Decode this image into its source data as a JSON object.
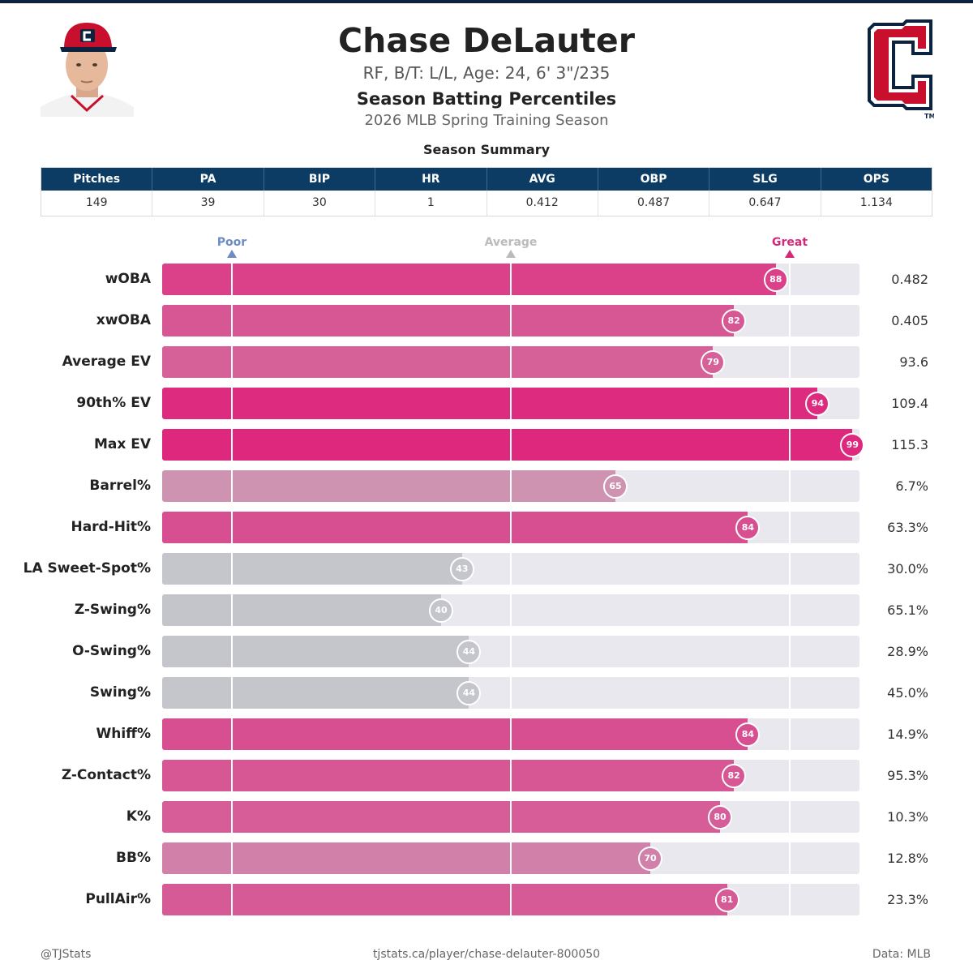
{
  "header": {
    "player_name": "Chase DeLauter",
    "bio": "RF, B/T: L/L, Age: 24, 6' 3\"/235",
    "subtitle": "Season Batting Percentiles",
    "season": "2026 MLB Spring Training Season",
    "logo_tm": "TM"
  },
  "summary": {
    "title": "Season Summary",
    "headers": [
      "Pitches",
      "PA",
      "BIP",
      "HR",
      "AVG",
      "OBP",
      "SLG",
      "OPS"
    ],
    "values": [
      "149",
      "39",
      "30",
      "1",
      "0.412",
      "0.487",
      "0.647",
      "1.134"
    ]
  },
  "scale": {
    "poor": "Poor",
    "average": "Average",
    "great": "Great",
    "poor_color": "#6b8cc4",
    "average_color": "#bbbbbb",
    "great_color": "#d6287a"
  },
  "chart_data": {
    "type": "bar",
    "orientation": "horizontal",
    "title": "Season Batting Percentiles",
    "xlim": [
      0,
      100
    ],
    "reference_lines": {
      "Poor": 10,
      "Average": 50,
      "Great": 90
    },
    "categories": [
      "wOBA",
      "xwOBA",
      "Average EV",
      "90th% EV",
      "Max EV",
      "Barrel%",
      "Hard-Hit%",
      "LA Sweet-Spot%",
      "Z-Swing%",
      "O-Swing%",
      "Swing%",
      "Whiff%",
      "Z-Contact%",
      "K%",
      "BB%",
      "PullAir%"
    ],
    "percentiles": [
      88,
      82,
      79,
      94,
      99,
      65,
      84,
      43,
      40,
      44,
      44,
      84,
      82,
      80,
      70,
      81
    ],
    "stat_values": [
      "0.482",
      "0.405",
      "93.6",
      "109.4",
      "115.3",
      "6.7%",
      "63.3%",
      "30.0%",
      "65.1%",
      "28.9%",
      "45.0%",
      "14.9%",
      "95.3%",
      "10.3%",
      "12.8%",
      "23.3%"
    ]
  },
  "footer": {
    "left": "@TJStats",
    "center": "tjstats.ca/player/chase-delauter-800050",
    "right": "Data: MLB"
  }
}
